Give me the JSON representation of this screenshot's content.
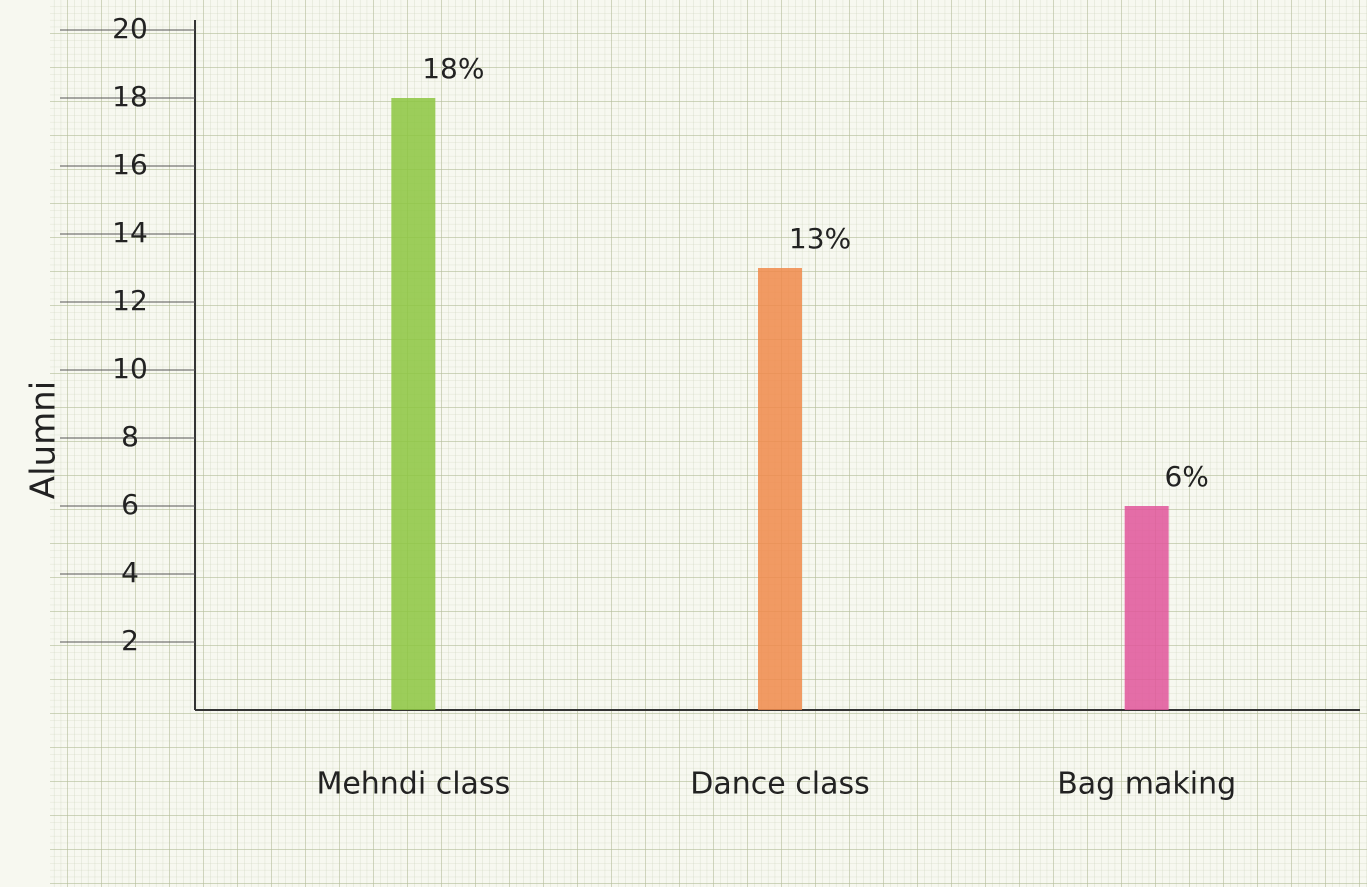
{
  "chart_data": {
    "type": "bar",
    "y_label": "Alumni",
    "categories": [
      "Mehndi class",
      "Dance class",
      "Bag making"
    ],
    "values": [
      18,
      13,
      6
    ],
    "value_labels": [
      "18%",
      "13%",
      "6%"
    ],
    "colors": [
      "#8cc63f",
      "#f0894a",
      "#e0559a"
    ],
    "ylim": [
      0,
      20
    ],
    "yticks": [
      2,
      4,
      6,
      8,
      10,
      12,
      14,
      16,
      18,
      20
    ],
    "grid": true
  }
}
